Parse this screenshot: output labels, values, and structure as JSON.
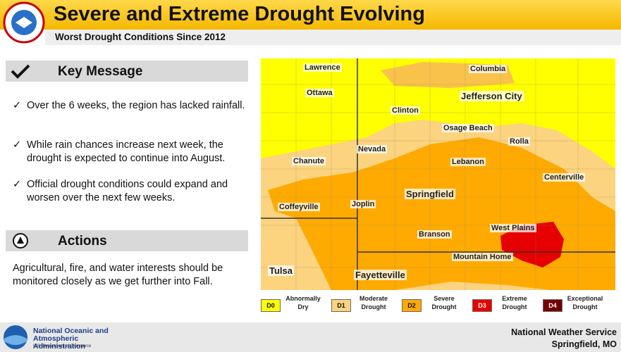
{
  "header": {
    "title": "Severe and Extreme Drought Evolving",
    "subtitle": "Worst Drought Conditions Since 2012"
  },
  "key_message": {
    "title": "Key Message",
    "bullets": [
      "Over the 6 weeks, the region has lacked rainfall.",
      "While rain chances increase next week, the drought is expected to continue into August.",
      "Official drought conditions could expand and worsen over the next few weeks."
    ]
  },
  "actions": {
    "title": "Actions",
    "text": "Agricultural, fire, and water interests should be monitored closely as we get further into Fall."
  },
  "map": {
    "cities": [
      "Lawrence",
      "Columbia",
      "Ottawa",
      "Jefferson City",
      "Clinton",
      "Osage Beach",
      "Nevada",
      "Rolla",
      "Chanute",
      "Lebanon",
      "Centerville",
      "Springfield",
      "Coffeyville",
      "Joplin",
      "West Plains",
      "Branson",
      "Mountain Home",
      "Tulsa",
      "Fayetteville"
    ],
    "legend": [
      {
        "code": "D0",
        "label": "Abnormally Dry",
        "color": "#ffff00"
      },
      {
        "code": "D1",
        "label": "Moderate Drought",
        "color": "#fcd37f"
      },
      {
        "code": "D2",
        "label": "Severe Drought",
        "color": "#ffaa00"
      },
      {
        "code": "D3",
        "label": "Extreme Drought",
        "color": "#e60000"
      },
      {
        "code": "D4",
        "label": "Exceptional Drought",
        "color": "#730000"
      }
    ]
  },
  "footer": {
    "noaa_name": "National Oceanic and Atmospheric Administration",
    "noaa_dept": "U.S. Department of Commerce",
    "office": "National Weather Service",
    "location": "Springfield, MO"
  }
}
